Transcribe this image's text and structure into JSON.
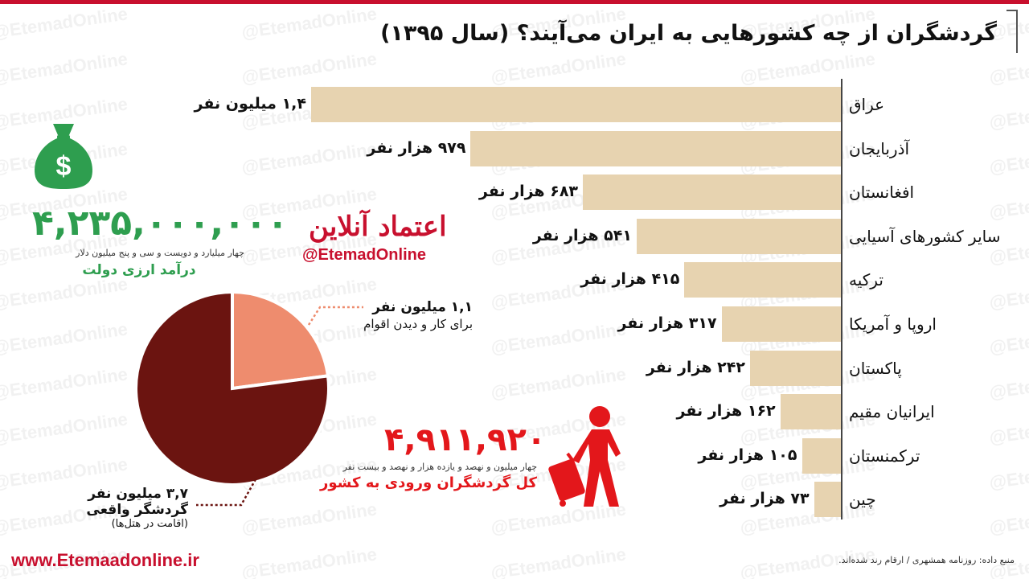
{
  "header": {
    "title": "گردشگران از چه کشورهایی به ایران می‌آیند؟ (سال ۱۳۹۵)"
  },
  "watermark": {
    "text": "@EtemadOnline"
  },
  "chart_data": [
    {
      "type": "bar",
      "orientation": "horizontal",
      "categories": [
        "عراق",
        "آذربایجان",
        "افغانستان",
        "سایر کشورهای آسیایی",
        "ترکیه",
        "اروپا و آمریکا",
        "پاکستان",
        "ایرانیان مقیم",
        "ترکمنستان",
        "چین"
      ],
      "values": [
        1400000,
        979000,
        683000,
        541000,
        415000,
        317000,
        242000,
        162000,
        105000,
        73000
      ],
      "value_labels": [
        "۱,۴ میلیون نفر",
        "۹۷۹ هزار نفر",
        "۶۸۳ هزار نفر",
        "۵۴۱ هزار نفر",
        "۴۱۵ هزار نفر",
        "۳۱۷ هزار نفر",
        "۲۴۲ هزار نفر",
        "۱۶۲ هزار نفر",
        "۱۰۵ هزار نفر",
        "۷۳ هزار نفر"
      ],
      "bar_color": "#e7d3b0"
    },
    {
      "type": "pie",
      "slices": [
        {
          "value": 1.1,
          "label": "۱,۱ میلیون نفر",
          "desc": "برای کار و دیدن اقوام",
          "color": "#ee8c6e"
        },
        {
          "value": 3.7,
          "label": "۳,۷ میلیون نفر",
          "desc": "گردشگر واقعی",
          "desc2": "(اقامت در هتل‌ها)",
          "color": "#6b1410"
        }
      ]
    }
  ],
  "income": {
    "icon": "money-bag-icon",
    "value": "۴,۲۳۵,۰۰۰,۰۰۰",
    "words": "چهار میلیارد و دویست و سی و پنج میلیون دلار",
    "label": "درآمد ارزی دولت",
    "color": "#2e9e4f"
  },
  "brand": {
    "logo_text": "اعتماد آنلاین",
    "handle": "@EtemadOnline",
    "color": "#c8102e"
  },
  "total": {
    "value": "۴,۹۱۱,۹۲۰",
    "words": "چهار میلیون و نهصد و یازده هزار و نهصد و بیست نفر",
    "label": "کل گردشگران ورودی به کشور",
    "icon": "traveler-with-luggage-icon",
    "color": "#e3171b"
  },
  "footer": {
    "website": "www.Etemaadonline.ir",
    "source": "منبع داده: روزنامه همشهری / ارقام رند شده‌اند."
  }
}
